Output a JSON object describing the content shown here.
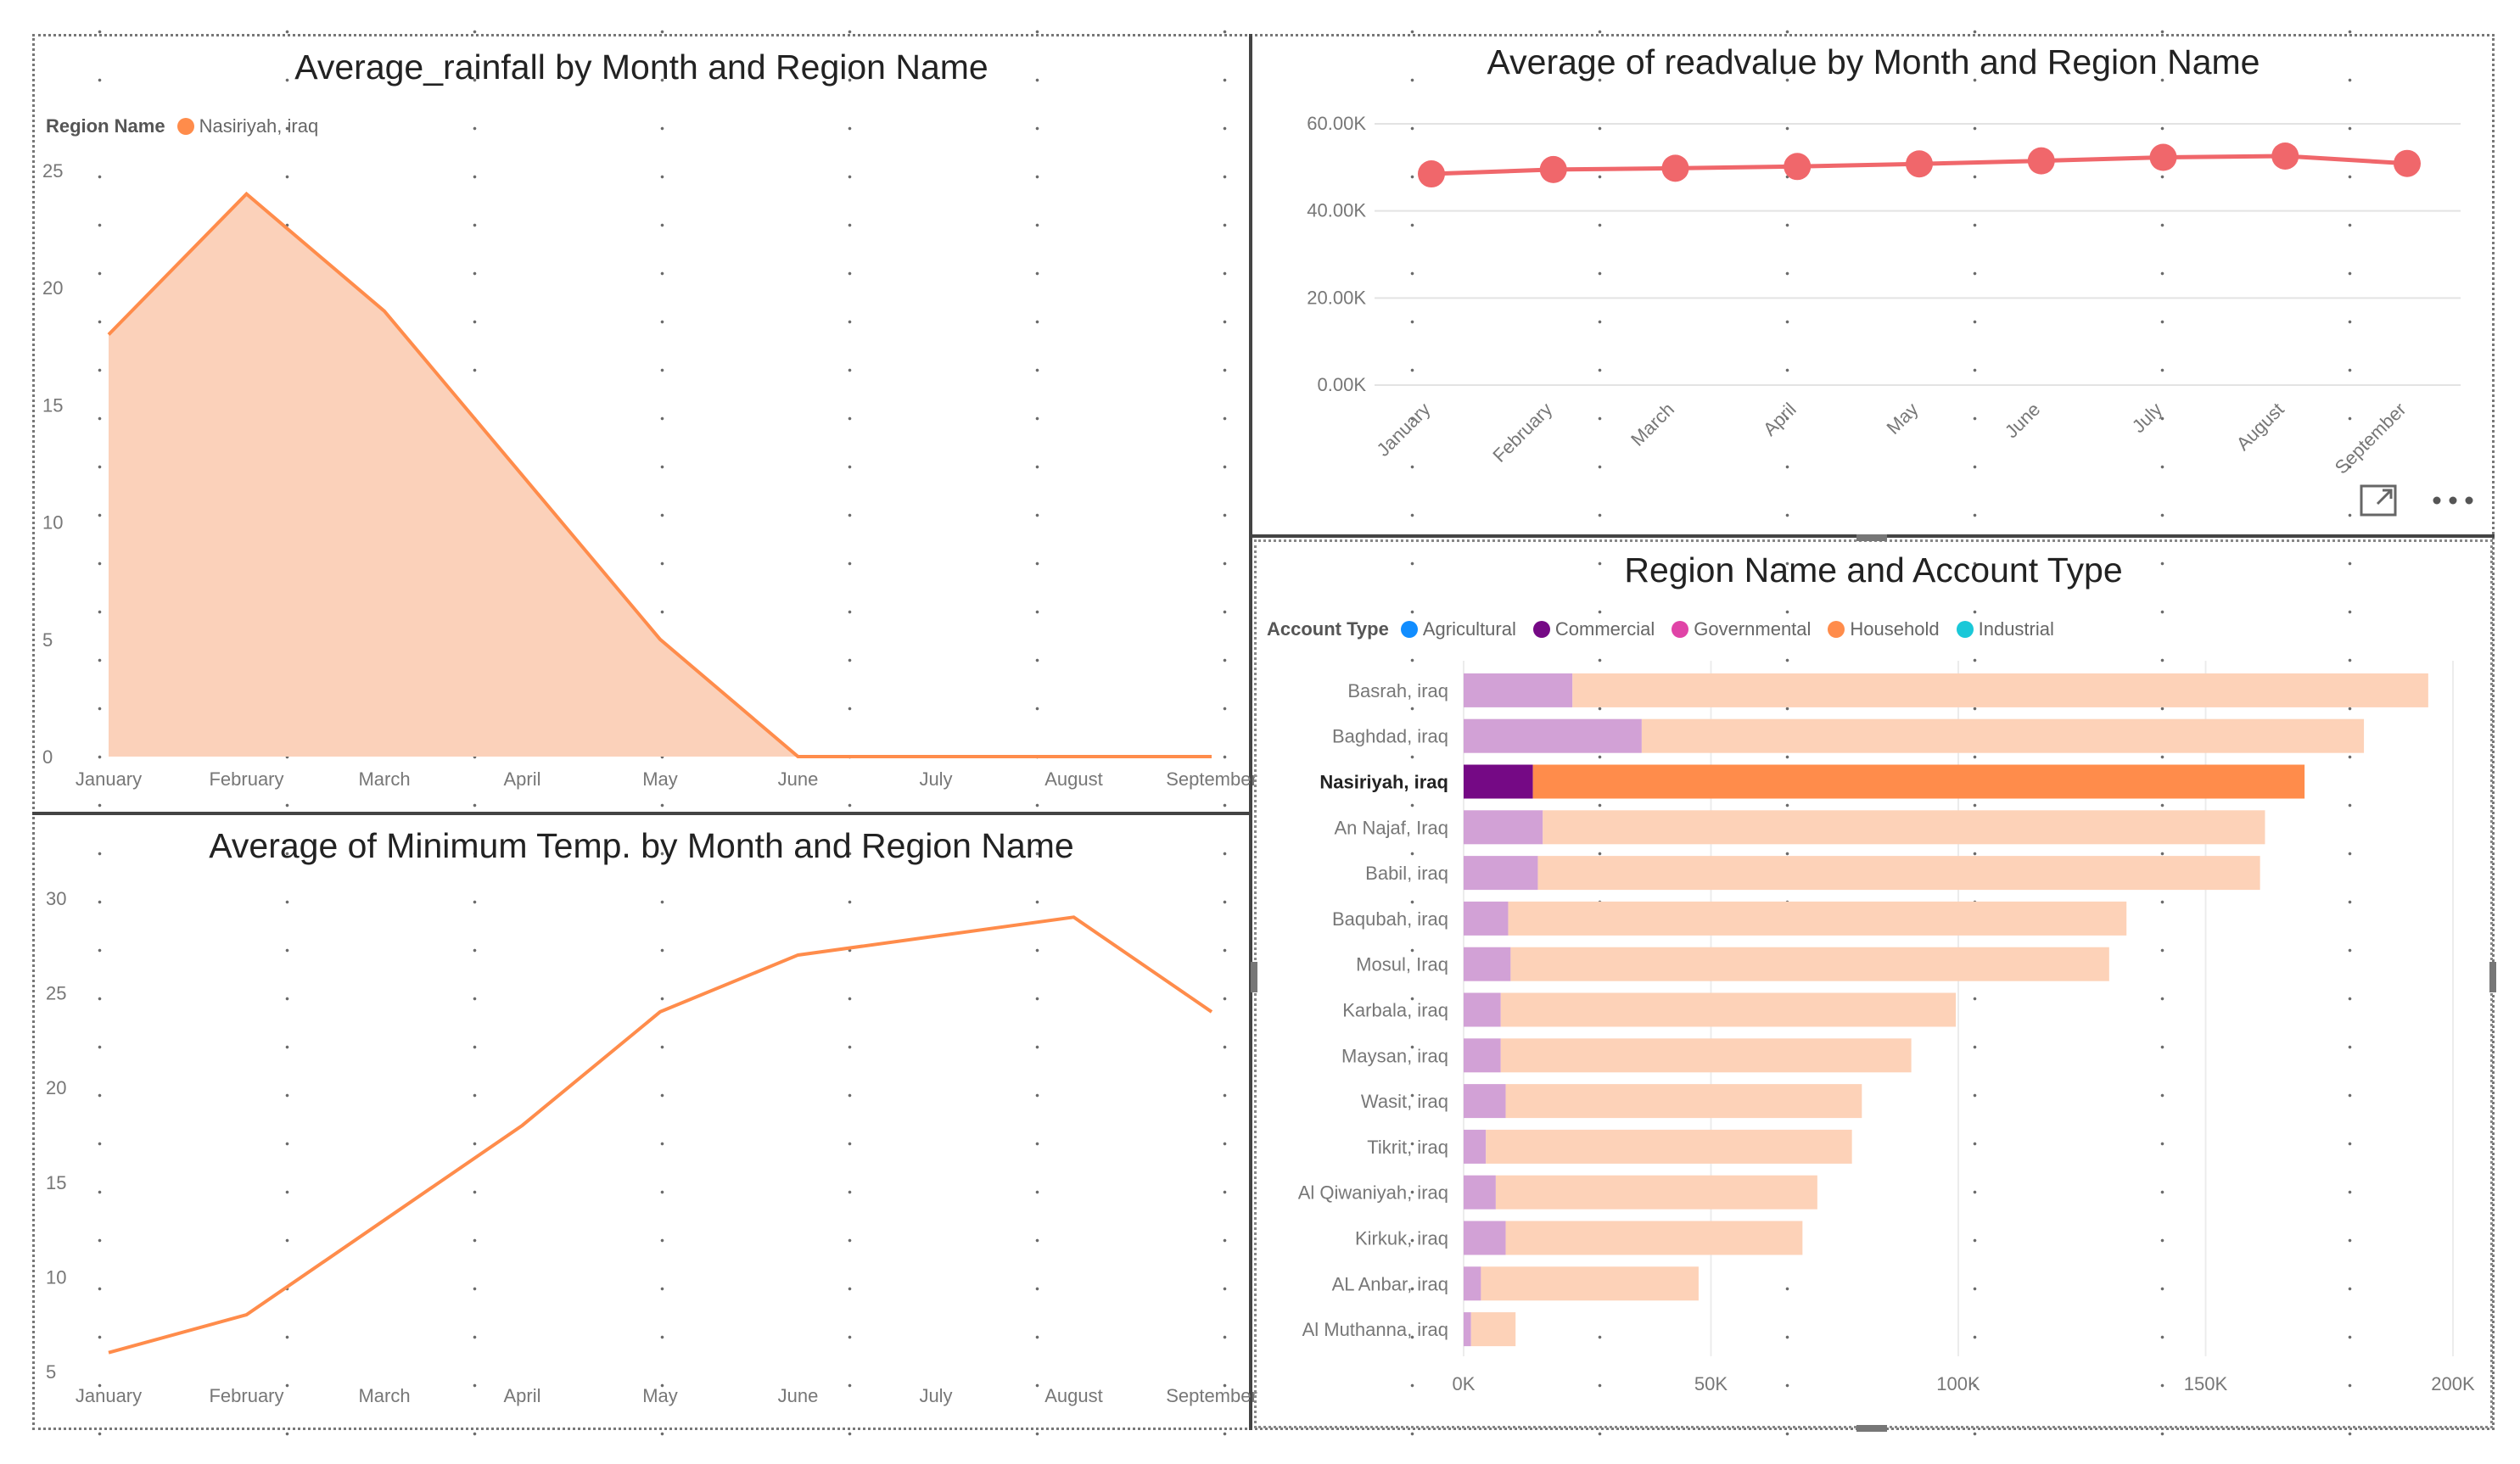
{
  "colors": {
    "accent_orange": "#FF8C4B",
    "area_fill": "#FBD1BA",
    "readvalue_line": "#F0676B",
    "household_light": "#FDD2B8",
    "commercial_light": "#D2A1D6",
    "agricultural": "#118DFF",
    "commercial": "#750985",
    "governmental": "#E044A7",
    "household": "#FF8C4B",
    "industrial": "#1AC8D8"
  },
  "icons": [
    "focus-mode-icon",
    "more-options-icon"
  ],
  "charts": {
    "rainfall": {
      "title": "Average_rainfall by Month and Region Name",
      "legend_label": "Region Name",
      "legend_item": "Nasiriyah, iraq",
      "y_ticks": [
        "0",
        "5",
        "10",
        "15",
        "20",
        "25"
      ]
    },
    "mintemp": {
      "title": "Average of Minimum Temp. by Month and Region Name",
      "y_ticks": [
        "5",
        "10",
        "15",
        "20",
        "25",
        "30"
      ]
    },
    "readvalue": {
      "title": "Average of readvalue by Month and Region Name",
      "y_ticks": [
        "0.00K",
        "20.00K",
        "40.00K",
        "60.00K"
      ]
    },
    "accounts": {
      "title": "Region Name and Account Type",
      "legend_label": "Account Type",
      "legend_items": [
        "Agricultural",
        "Commercial",
        "Governmental",
        "Household",
        "Industrial"
      ],
      "x_ticks": [
        "0K",
        "50K",
        "100K",
        "150K",
        "200K"
      ]
    }
  },
  "chart_data": [
    {
      "id": "rainfall",
      "type": "area",
      "title": "Average_rainfall by Month and Region Name",
      "categories": [
        "January",
        "February",
        "March",
        "April",
        "May",
        "June",
        "July",
        "August",
        "September"
      ],
      "series": [
        {
          "name": "Nasiriyah, iraq",
          "values": [
            18,
            24,
            19,
            12,
            5,
            0,
            0,
            0,
            0
          ]
        }
      ],
      "ylim": [
        0,
        25
      ],
      "legend": "top-left"
    },
    {
      "id": "mintemp",
      "type": "line",
      "title": "Average of Minimum Temp. by Month and Region Name",
      "categories": [
        "January",
        "February",
        "March",
        "April",
        "May",
        "June",
        "July",
        "August",
        "September"
      ],
      "series": [
        {
          "name": "Nasiriyah, iraq",
          "values": [
            6,
            8,
            13,
            18,
            24,
            27,
            28,
            29,
            24
          ]
        }
      ],
      "ylim": [
        5,
        30
      ]
    },
    {
      "id": "readvalue",
      "type": "line",
      "title": "Average of readvalue by Month and Region Name",
      "categories": [
        "January",
        "February",
        "March",
        "April",
        "May",
        "June",
        "July",
        "August",
        "September"
      ],
      "series": [
        {
          "name": "Nasiriyah, iraq",
          "values": [
            48500,
            49500,
            49800,
            50200,
            50800,
            51500,
            52300,
            52600,
            50900
          ]
        }
      ],
      "ylim": [
        0,
        60000
      ]
    },
    {
      "id": "accounts",
      "type": "bar",
      "orientation": "horizontal",
      "stacked": true,
      "title": "Region Name and Account Type",
      "categories": [
        "Basrah, iraq",
        "Baghdad, iraq",
        "Nasiriyah, iraq",
        "An Najaf, Iraq",
        "Babil, iraq",
        "Baqubah, iraq",
        "Mosul, Iraq",
        "Karbala, iraq",
        "Maysan, iraq",
        "Wasit, iraq",
        "Tikrit, iraq",
        "Al Qiwaniyah, iraq",
        "Kirkuk, iraq",
        "AL Anbar, iraq",
        "Al Muthanna, iraq"
      ],
      "highlighted_category": "Nasiriyah, iraq",
      "series": [
        {
          "name": "Commercial",
          "values": [
            22000,
            36000,
            14000,
            16000,
            15000,
            9000,
            9500,
            7500,
            7500,
            8500,
            4500,
            6500,
            8500,
            3500,
            1500
          ]
        },
        {
          "name": "Household",
          "values": [
            173000,
            146000,
            156000,
            146000,
            146000,
            125000,
            121000,
            92000,
            83000,
            72000,
            74000,
            65000,
            60000,
            44000,
            9000
          ]
        }
      ],
      "xlim": [
        0,
        200000
      ]
    }
  ]
}
